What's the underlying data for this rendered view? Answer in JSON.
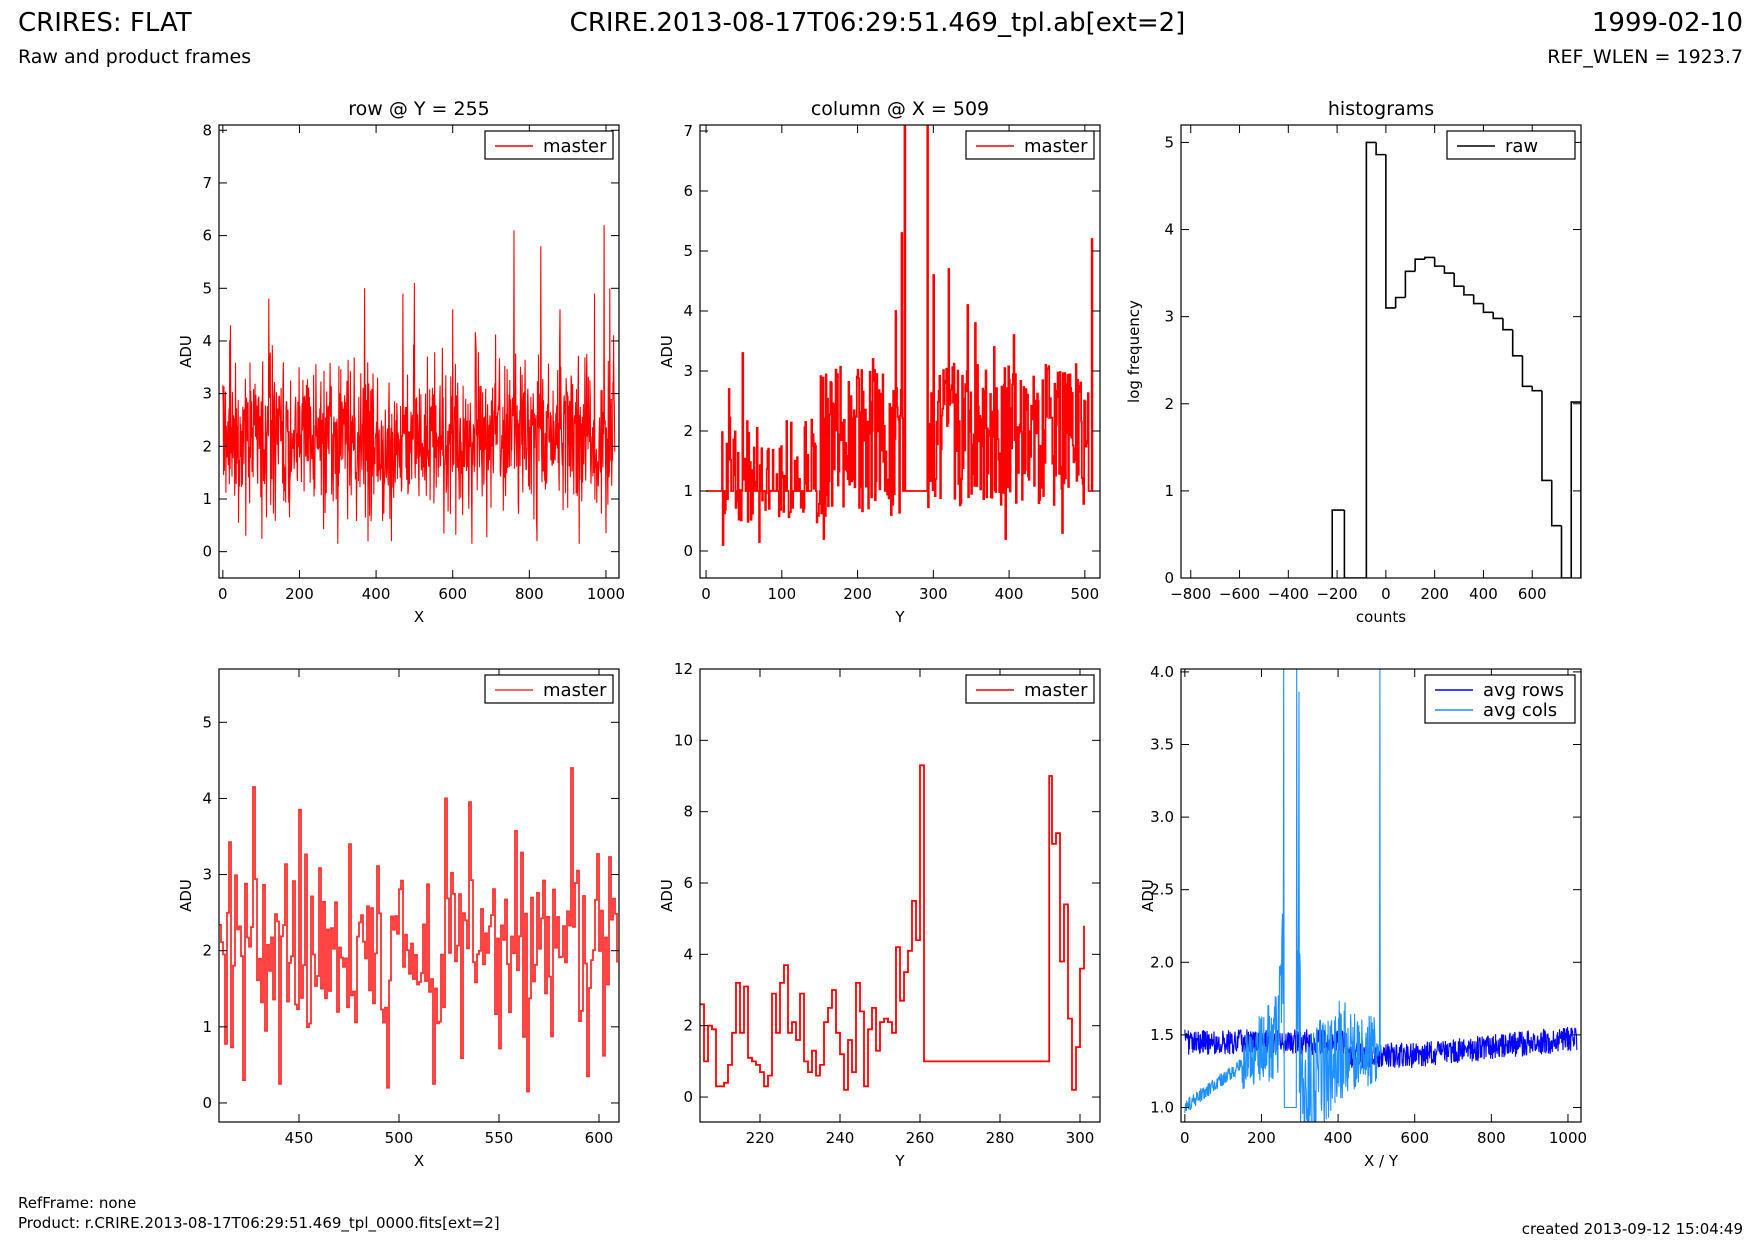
{
  "header": {
    "title_left": "CRIRES: FLAT",
    "title_center": "CRIRE.2013-08-17T06:29:51.469_tpl.ab[ext=2]",
    "title_right": "1999-02-10",
    "subtitle_left": "Raw and product frames",
    "subtitle_right": "REF_WLEN = 1923.7"
  },
  "footer": {
    "refframe": "RefFrame: none",
    "product": "Product: r.CRIRE.2013-08-17T06:29:51.469_tpl_0000.fits[ext=2]",
    "created": "created 2013-09-12 15:04:49"
  },
  "colors": {
    "master": "#ff0000",
    "raw": "#000000",
    "avg_rows": "#0000ff",
    "avg_cols": "#1e90ff"
  },
  "chart_data": [
    {
      "id": "row",
      "type": "line",
      "title": "row @ Y = 255",
      "xlabel": "X",
      "ylabel": "ADU",
      "xlim": [
        -10,
        1034
      ],
      "ylim": [
        -0.5,
        8.1
      ],
      "xticks": [
        0,
        200,
        400,
        600,
        800,
        1000
      ],
      "yticks": [
        0,
        1,
        2,
        3,
        4,
        5,
        6,
        7,
        8
      ],
      "legend": {
        "position": "top-right",
        "entries": [
          "master"
        ]
      },
      "series": [
        {
          "name": "master",
          "color": "#ff0000",
          "kind": "noise",
          "n": 1024,
          "x0": 0,
          "dx": 1,
          "base": 2.2,
          "amp": 1.3,
          "spikes": [
            [
              20,
              4.3
            ],
            [
              120,
              4.8
            ],
            [
              300,
              4.1
            ],
            [
              370,
              5.0
            ],
            [
              470,
              4.9
            ],
            [
              500,
              5.1
            ],
            [
              600,
              4.6
            ],
            [
              650,
              4.4
            ],
            [
              760,
              6.1
            ],
            [
              830,
              5.8
            ],
            [
              880,
              4.6
            ],
            [
              970,
              4.9
            ],
            [
              995,
              6.2
            ],
            [
              1010,
              5.0
            ]
          ],
          "dips": [
            [
              300,
              0.15
            ],
            [
              440,
              0.2
            ],
            [
              650,
              0.15
            ],
            [
              820,
              0.2
            ],
            [
              930,
              0.15
            ],
            [
              1000,
              0.35
            ]
          ]
        }
      ]
    },
    {
      "id": "column",
      "type": "line",
      "title": "column @ X = 509",
      "xlabel": "Y",
      "ylabel": "ADU",
      "xlim": [
        -8,
        520
      ],
      "ylim": [
        -0.45,
        7.1
      ],
      "xticks": [
        0,
        100,
        200,
        300,
        400,
        500
      ],
      "yticks": [
        0,
        1,
        2,
        3,
        4,
        5,
        6,
        7
      ],
      "legend": {
        "position": "top-right",
        "entries": [
          "master"
        ]
      },
      "series": [
        {
          "name": "master",
          "color": "#ff0000",
          "kind": "column",
          "n": 512,
          "flat": [
            [
              0,
              20,
              1.0
            ],
            [
              260,
              292,
              1.0
            ],
            [
              505,
              512,
              1.0
            ]
          ],
          "spikes": [
            [
              30,
              2.7
            ],
            [
              48,
              3.3
            ],
            [
              165,
              2.8
            ],
            [
              220,
              3.2
            ],
            [
              250,
              4.0
            ],
            [
              258,
              5.3
            ],
            [
              262,
              7.1
            ],
            [
              292,
              7.1
            ],
            [
              300,
              4.6
            ],
            [
              320,
              4.7
            ],
            [
              345,
              4.1
            ],
            [
              355,
              3.8
            ],
            [
              380,
              3.4
            ],
            [
              406,
              3.6
            ],
            [
              509,
              5.2
            ]
          ],
          "dips": [
            [
              22,
              0.1
            ],
            [
              70,
              0.15
            ],
            [
              155,
              0.2
            ],
            [
              395,
              0.2
            ],
            [
              470,
              0.3
            ]
          ]
        }
      ]
    },
    {
      "id": "histograms",
      "type": "bar",
      "title": "histograms",
      "xlabel": "counts",
      "ylabel": "log frequency",
      "xlim": [
        -840,
        800
      ],
      "ylim": [
        0,
        5.2
      ],
      "xticks": [
        -800,
        -600,
        -400,
        -200,
        0,
        200,
        400,
        600
      ],
      "yticks": [
        0,
        1,
        2,
        3,
        4,
        5
      ],
      "legend": {
        "position": "top-right",
        "entries": [
          "raw"
        ]
      },
      "series": [
        {
          "name": "raw",
          "color": "#000000",
          "kind": "hist",
          "edges": [
            -220,
            -170,
            -120,
            -80,
            -40,
            0,
            40,
            80,
            120,
            160,
            200,
            240,
            280,
            320,
            360,
            400,
            440,
            480,
            520,
            560,
            600,
            640,
            680,
            720,
            760,
            800
          ],
          "values": [
            0.78,
            0,
            0,
            5.0,
            4.86,
            3.1,
            3.22,
            3.52,
            3.66,
            3.68,
            3.58,
            3.5,
            3.35,
            3.25,
            3.15,
            3.05,
            2.98,
            2.85,
            2.55,
            2.2,
            2.15,
            1.12,
            0.6,
            0,
            2.02
          ]
        }
      ]
    },
    {
      "id": "row-zoom",
      "type": "line",
      "title": "",
      "xlabel": "X",
      "ylabel": "ADU",
      "xlim": [
        410,
        610
      ],
      "ylim": [
        -0.25,
        5.7
      ],
      "xticks": [
        450,
        500,
        550,
        600
      ],
      "yticks": [
        0,
        1,
        2,
        3,
        4,
        5
      ],
      "legend": {
        "position": "top-right",
        "entries": [
          "master"
        ]
      },
      "series": [
        {
          "name": "master",
          "color": "#ff3030",
          "kind": "noise_step",
          "n": 200,
          "x0": 410,
          "dx": 1,
          "base": 2.1,
          "amp": 1.1,
          "spikes": [
            [
              427,
              4.15
            ],
            [
              450,
              3.85
            ],
            [
              475,
              3.4
            ],
            [
              523,
              4.0
            ],
            [
              535,
              3.95
            ],
            [
              586,
              4.4
            ]
          ],
          "dips": [
            [
              422,
              0.3
            ],
            [
              440,
              0.25
            ],
            [
              494,
              0.2
            ],
            [
              517,
              0.25
            ],
            [
              564,
              0.15
            ],
            [
              594,
              0.35
            ]
          ]
        }
      ]
    },
    {
      "id": "column-zoom",
      "type": "line",
      "title": "",
      "xlabel": "Y",
      "ylabel": "ADU",
      "xlim": [
        205,
        305
      ],
      "ylim": [
        -0.7,
        12
      ],
      "xticks": [
        220,
        240,
        260,
        280,
        300
      ],
      "yticks": [
        0,
        2,
        4,
        6,
        8,
        10,
        12
      ],
      "legend": {
        "position": "top-right",
        "entries": [
          "master"
        ]
      },
      "series": [
        {
          "name": "master",
          "color": "#ff0000",
          "kind": "step",
          "points": [
            [
              205,
              2.6
            ],
            [
              206,
              1.0
            ],
            [
              207,
              2.0
            ],
            [
              208,
              1.9
            ],
            [
              209,
              0.3
            ],
            [
              211,
              0.4
            ],
            [
              212,
              0.9
            ],
            [
              213,
              1.8
            ],
            [
              214,
              3.2
            ],
            [
              215,
              1.8
            ],
            [
              216,
              3.1
            ],
            [
              217,
              1.1
            ],
            [
              218,
              1.0
            ],
            [
              219,
              0.9
            ],
            [
              220,
              0.7
            ],
            [
              221,
              0.3
            ],
            [
              222,
              0.6
            ],
            [
              223,
              2.9
            ],
            [
              224,
              1.8
            ],
            [
              225,
              3.2
            ],
            [
              226,
              3.7
            ],
            [
              227,
              1.8
            ],
            [
              228,
              2.1
            ],
            [
              229,
              1.6
            ],
            [
              230,
              2.9
            ],
            [
              231,
              1.0
            ],
            [
              232,
              0.7
            ],
            [
              233,
              1.3
            ],
            [
              234,
              0.6
            ],
            [
              235,
              0.9
            ],
            [
              236,
              2.1
            ],
            [
              237,
              2.5
            ],
            [
              238,
              3.0
            ],
            [
              239,
              1.8
            ],
            [
              240,
              1.2
            ],
            [
              241,
              0.2
            ],
            [
              242,
              1.6
            ],
            [
              243,
              0.7
            ],
            [
              244,
              3.2
            ],
            [
              245,
              2.4
            ],
            [
              246,
              0.3
            ],
            [
              247,
              1.9
            ],
            [
              248,
              2.5
            ],
            [
              249,
              1.3
            ],
            [
              250,
              2.1
            ],
            [
              251,
              2.2
            ],
            [
              252,
              2.1
            ],
            [
              253,
              1.8
            ],
            [
              254,
              4.2
            ],
            [
              255,
              2.7
            ],
            [
              256,
              3.5
            ],
            [
              257,
              4.1
            ],
            [
              258,
              5.5
            ],
            [
              259,
              4.4
            ],
            [
              260,
              9.3
            ],
            [
              261,
              1.0
            ],
            [
              292,
              1.0
            ],
            [
              292.3,
              9.0
            ],
            [
              293,
              7.1
            ],
            [
              294,
              7.4
            ],
            [
              295,
              3.8
            ],
            [
              296,
              5.4
            ],
            [
              297,
              2.2
            ],
            [
              298,
              0.2
            ],
            [
              299,
              1.4
            ],
            [
              300,
              3.6
            ],
            [
              301,
              4.8
            ]
          ]
        }
      ]
    },
    {
      "id": "averages",
      "type": "line",
      "title": "",
      "xlabel": "X / Y",
      "ylabel": "ADU",
      "xlim": [
        -10,
        1034
      ],
      "ylim": [
        0.9,
        4.02
      ],
      "xticks": [
        0,
        200,
        400,
        600,
        800,
        1000
      ],
      "yticks": [
        1.0,
        1.5,
        2.0,
        2.5,
        3.0,
        3.5,
        4.0
      ],
      "legend": {
        "position": "top-right",
        "entries": [
          "avg rows",
          "avg cols"
        ]
      },
      "series": [
        {
          "name": "avg rows",
          "color": "#0000ff",
          "kind": "avgrows",
          "n": 1024,
          "x0": 0,
          "dx": 1,
          "base": 1.43,
          "amp": 0.08
        },
        {
          "name": "avg cols",
          "color": "#1e90ff",
          "kind": "avgcols",
          "n": 512,
          "x0": 0,
          "dx": 1,
          "ramp": [
            [
              0,
              1.0
            ],
            [
              200,
              1.4
            ],
            [
              280,
              1.6
            ],
            [
              300,
              1.0
            ],
            [
              400,
              1.4
            ],
            [
              512,
              1.4
            ]
          ],
          "spikes": [
            [
              258,
              4.05
            ],
            [
              292,
              4.05
            ],
            [
              298,
              3.6
            ],
            [
              509,
              4.05
            ]
          ]
        }
      ]
    }
  ]
}
